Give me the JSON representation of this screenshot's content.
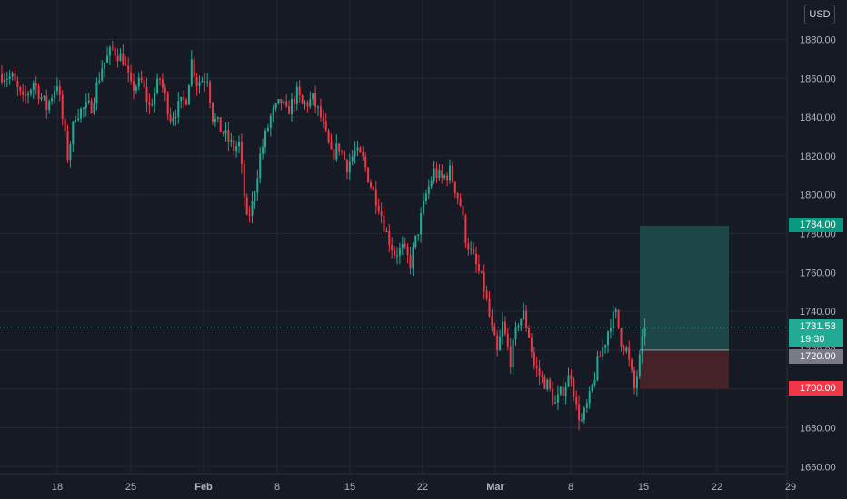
{
  "currency": "USD",
  "colors": {
    "background": "#161a25",
    "grid": "#232835",
    "axis_text": "#b2b5be",
    "up": "#22ab94",
    "down": "#f23645",
    "target_zone": "#1f4f4c",
    "stop_zone": "#4a2329",
    "last_line": "#22ab94"
  },
  "price_tags": {
    "target": "1784.00",
    "entry": "1720.00",
    "stop": "1700.00",
    "last_price": "1731.53",
    "countdown": "19:30"
  },
  "chart_data": {
    "type": "candlestick",
    "y_axis": {
      "ticks": [
        1880,
        1860,
        1840,
        1820,
        1800,
        1780,
        1760,
        1740,
        1720,
        1700,
        1680,
        1660
      ],
      "ylim": [
        1655,
        1890
      ]
    },
    "x_axis": {
      "tick_labels": [
        "18",
        "25",
        "Feb",
        "8",
        "15",
        "22",
        "Mar",
        "8",
        "15",
        "22",
        "29"
      ]
    },
    "price_path": [
      [
        0,
        1862
      ],
      [
        4,
        1860
      ],
      [
        8,
        1848
      ],
      [
        12,
        1858
      ],
      [
        17,
        1845
      ],
      [
        21,
        1858
      ],
      [
        25,
        1820
      ],
      [
        28,
        1842
      ],
      [
        34,
        1846
      ],
      [
        38,
        1866
      ],
      [
        42,
        1875
      ],
      [
        46,
        1870
      ],
      [
        49,
        1855
      ],
      [
        53,
        1858
      ],
      [
        56,
        1845
      ],
      [
        60,
        1860
      ],
      [
        64,
        1840
      ],
      [
        70,
        1850
      ],
      [
        72,
        1869
      ],
      [
        74,
        1858
      ],
      [
        78,
        1861
      ],
      [
        80,
        1840
      ],
      [
        84,
        1832
      ],
      [
        88,
        1824
      ],
      [
        90,
        1826
      ],
      [
        93,
        1786
      ],
      [
        95,
        1795
      ],
      [
        98,
        1820
      ],
      [
        102,
        1840
      ],
      [
        106,
        1848
      ],
      [
        108,
        1842
      ],
      [
        112,
        1852
      ],
      [
        114,
        1846
      ],
      [
        118,
        1849
      ],
      [
        121,
        1840
      ],
      [
        125,
        1820
      ],
      [
        128,
        1825
      ],
      [
        131,
        1815
      ],
      [
        134,
        1822
      ],
      [
        137,
        1818
      ],
      [
        140,
        1805
      ],
      [
        143,
        1795
      ],
      [
        146,
        1780
      ],
      [
        149,
        1770
      ],
      [
        152,
        1772
      ],
      [
        155,
        1765
      ],
      [
        158,
        1782
      ],
      [
        161,
        1800
      ],
      [
        164,
        1812
      ],
      [
        167,
        1808
      ],
      [
        170,
        1812
      ],
      [
        174,
        1795
      ],
      [
        176,
        1778
      ],
      [
        178,
        1770
      ],
      [
        181,
        1760
      ],
      [
        183,
        1752
      ],
      [
        186,
        1730
      ],
      [
        188,
        1718
      ],
      [
        190,
        1733
      ],
      [
        193,
        1715
      ],
      [
        196,
        1735
      ],
      [
        198,
        1738
      ],
      [
        200,
        1728
      ],
      [
        202,
        1712
      ],
      [
        205,
        1705
      ],
      [
        207,
        1702
      ],
      [
        210,
        1692
      ],
      [
        213,
        1700
      ],
      [
        216,
        1708
      ],
      [
        218,
        1690
      ],
      [
        220,
        1683
      ],
      [
        223,
        1695
      ],
      [
        226,
        1713
      ],
      [
        229,
        1725
      ],
      [
        231,
        1735
      ],
      [
        233,
        1738
      ],
      [
        235,
        1725
      ],
      [
        237,
        1720
      ],
      [
        240,
        1700
      ],
      [
        242,
        1715
      ],
      [
        244,
        1731.53
      ]
    ],
    "long_position": {
      "entry": 1720.0,
      "target": 1784.0,
      "stop": 1700.0,
      "last_price": 1731.53
    }
  }
}
